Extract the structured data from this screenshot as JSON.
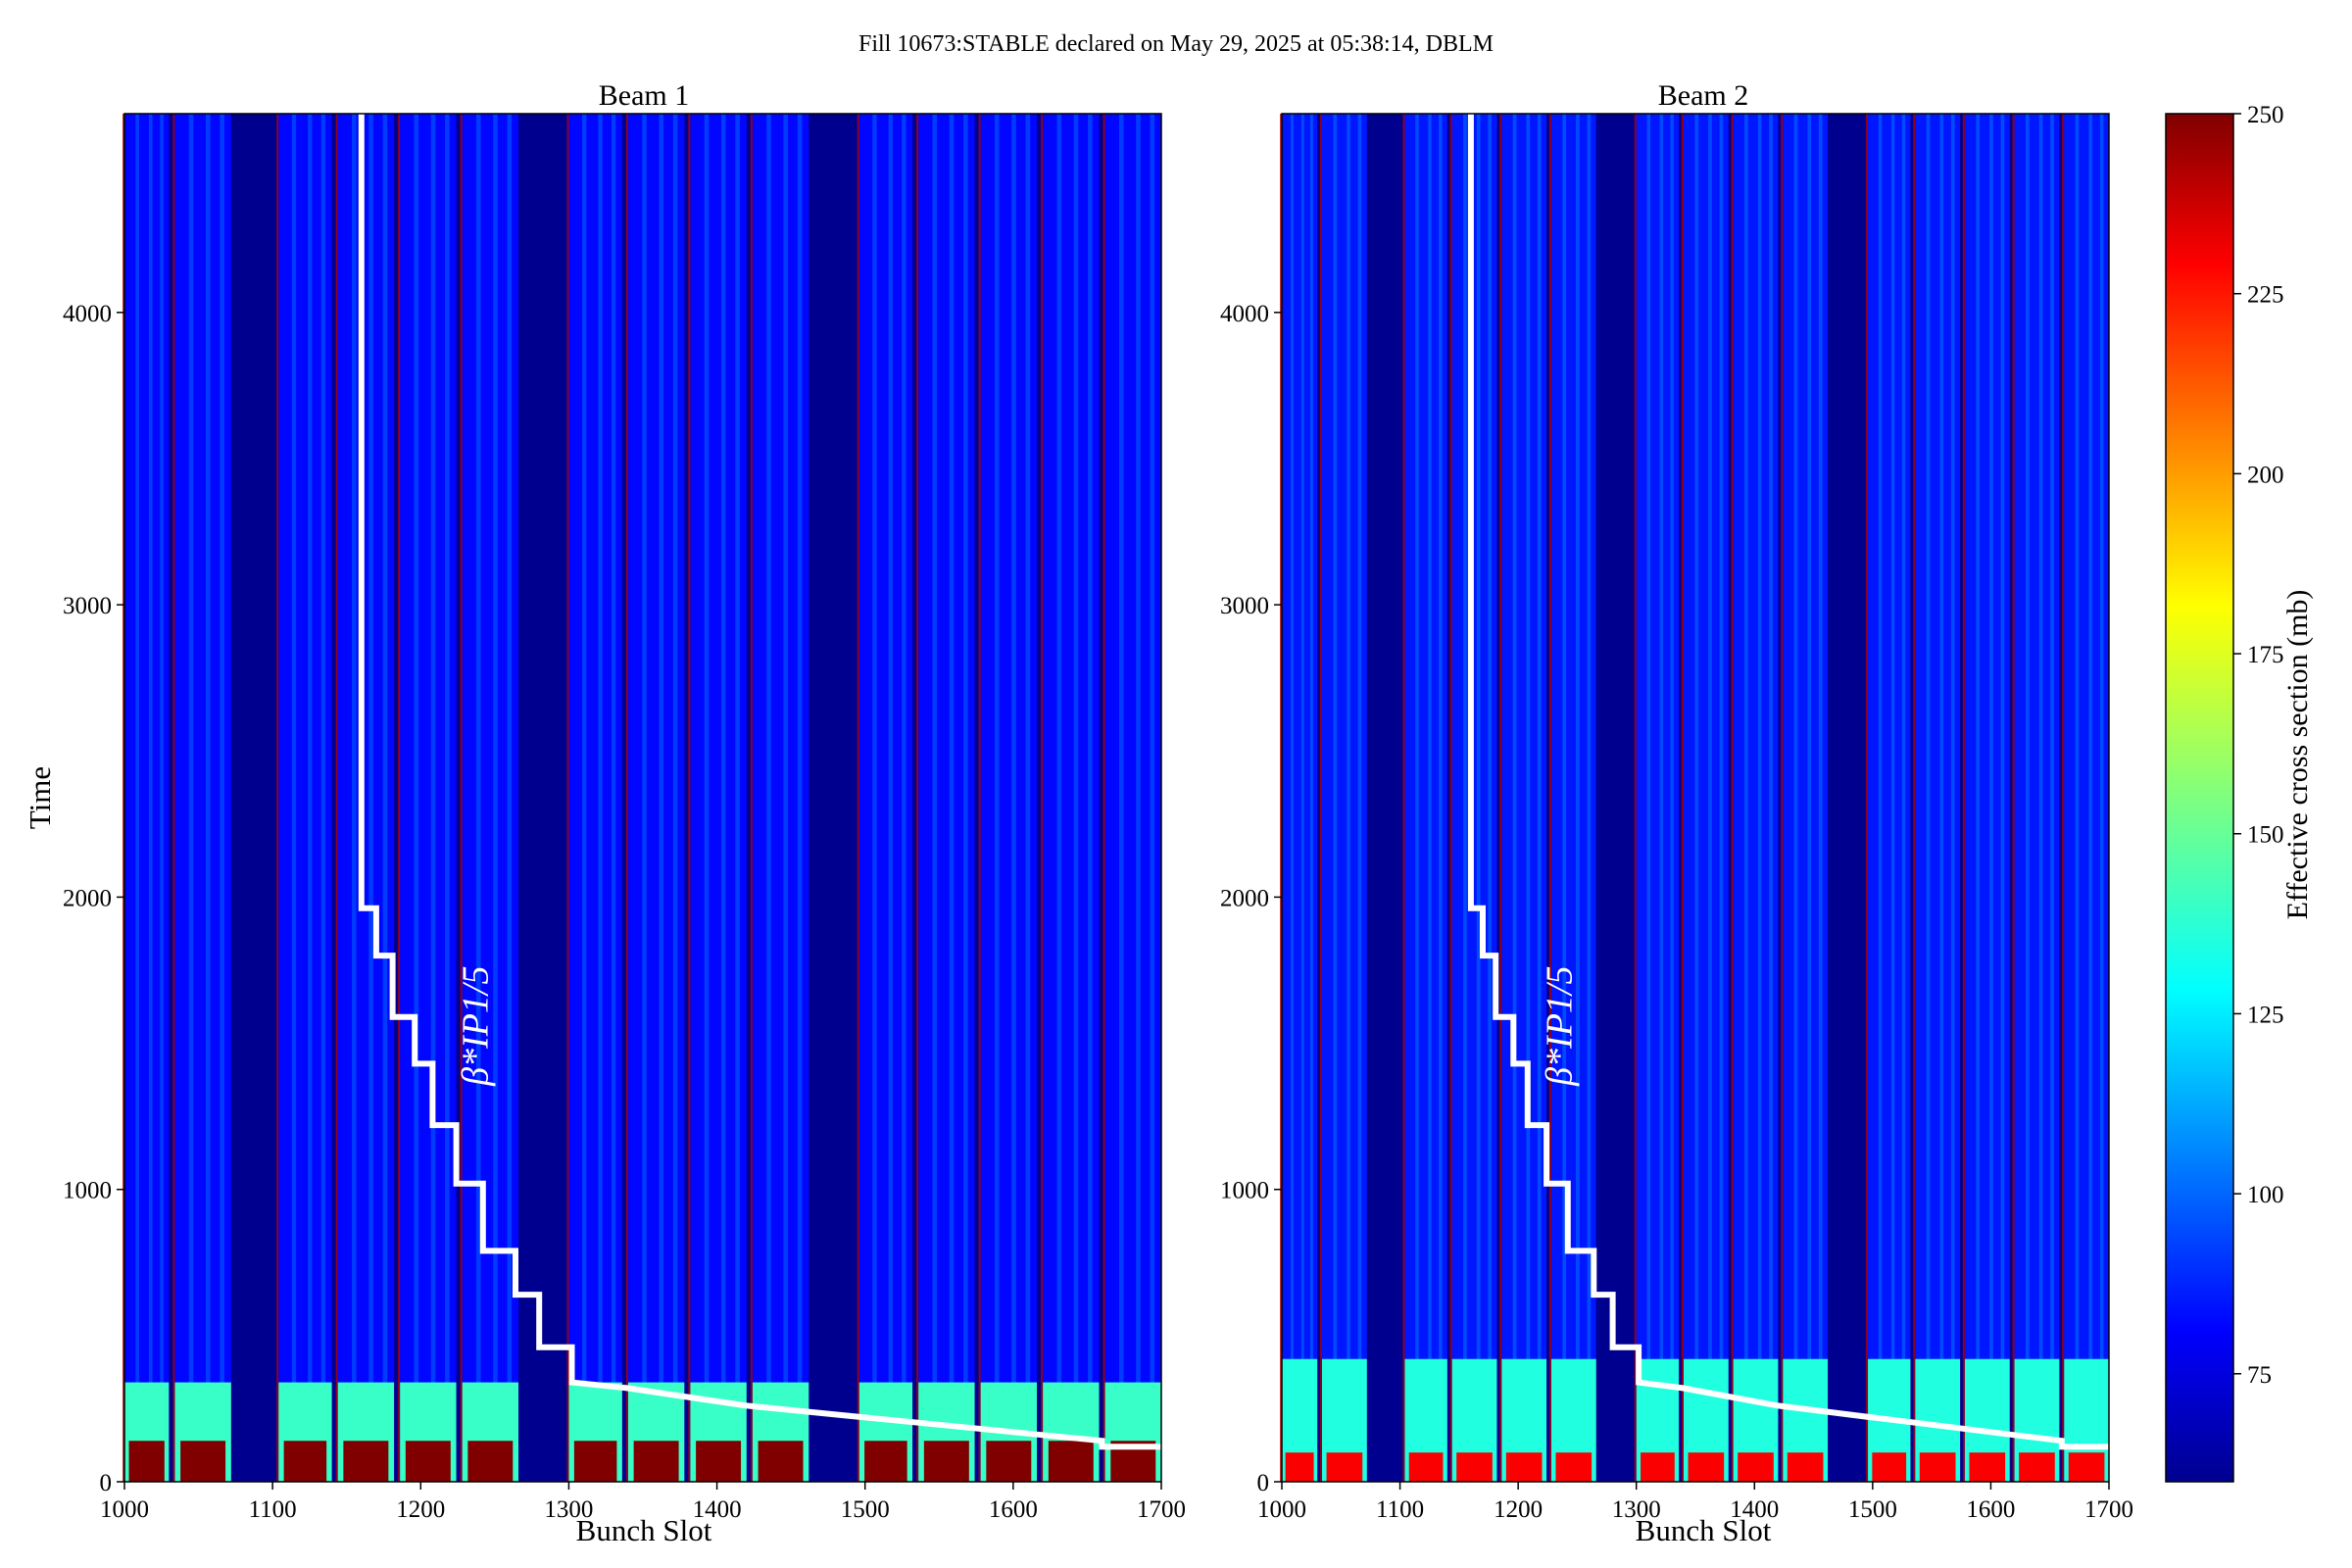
{
  "figure": {
    "suptitle": "Fill 10673:STABLE declared on May 29, 2025 at 05:38:14, DBLM"
  },
  "chart_data": [
    {
      "type": "heatmap",
      "title": "Beam 1",
      "xlabel": "Bunch Slot",
      "ylabel": "Time",
      "xlim": [
        1000,
        1700
      ],
      "ylim": [
        0,
        4680
      ],
      "xticks": [
        1000,
        1100,
        1200,
        1300,
        1400,
        1500,
        1600,
        1700
      ],
      "yticks": [
        0,
        1000,
        2000,
        3000,
        4000
      ],
      "colormap": "jet",
      "filled_trains": [
        [
          1000,
          1030
        ],
        [
          1034,
          1072
        ],
        [
          1104,
          1140
        ],
        [
          1144,
          1182
        ],
        [
          1186,
          1224
        ],
        [
          1228,
          1266
        ],
        [
          1300,
          1336
        ],
        [
          1340,
          1378
        ],
        [
          1382,
          1420
        ],
        [
          1424,
          1462
        ],
        [
          1496,
          1532
        ],
        [
          1536,
          1574
        ],
        [
          1578,
          1616
        ],
        [
          1620,
          1658
        ],
        [
          1662,
          1700
        ]
      ],
      "empty_color": "#00008f",
      "bulk_level_mb": 82,
      "low_time_band": {
        "time_range": [
          0,
          340
        ],
        "level_mb": 140
      },
      "high_time_band": {
        "time_range": [
          0,
          140
        ],
        "level_mb": 250
      },
      "annotation": "β*IP1/5",
      "beta_star_profile": {
        "x": [
          1160,
          1160,
          1170,
          1170,
          1181,
          1181,
          1196,
          1196,
          1208,
          1208,
          1224,
          1224,
          1242,
          1242,
          1264,
          1264,
          1280,
          1280,
          1302,
          1302,
          1340,
          1380,
          1420,
          1460,
          1500,
          1540,
          1580,
          1620,
          1660,
          1660,
          1700
        ],
        "y": [
          4680,
          1962,
          1962,
          1800,
          1800,
          1590,
          1590,
          1430,
          1430,
          1220,
          1220,
          1020,
          1020,
          790,
          790,
          640,
          640,
          460,
          460,
          340,
          320,
          290,
          260,
          240,
          220,
          200,
          180,
          160,
          140,
          120,
          120
        ]
      }
    },
    {
      "type": "heatmap",
      "title": "Beam 2",
      "xlabel": "Bunch Slot",
      "ylabel": "",
      "xlim": [
        1000,
        1700
      ],
      "ylim": [
        0,
        4680
      ],
      "xticks": [
        1000,
        1100,
        1200,
        1300,
        1400,
        1500,
        1600,
        1700
      ],
      "yticks": [
        0,
        1000,
        2000,
        3000,
        4000
      ],
      "colormap": "jet",
      "filled_trains": [
        [
          1000,
          1030
        ],
        [
          1034,
          1072
        ],
        [
          1104,
          1140
        ],
        [
          1144,
          1182
        ],
        [
          1186,
          1224
        ],
        [
          1228,
          1266
        ],
        [
          1300,
          1336
        ],
        [
          1340,
          1378
        ],
        [
          1382,
          1420
        ],
        [
          1424,
          1462
        ],
        [
          1496,
          1532
        ],
        [
          1536,
          1574
        ],
        [
          1578,
          1616
        ],
        [
          1620,
          1658
        ],
        [
          1662,
          1700
        ]
      ],
      "empty_color": "#00008f",
      "bulk_level_mb": 85,
      "low_time_band": {
        "time_range": [
          0,
          420
        ],
        "level_mb": 135
      },
      "high_time_band": {
        "time_range": [
          0,
          100
        ],
        "level_mb": 230
      },
      "annotation": "β*IP1/5",
      "beta_star_profile": {
        "x": [
          1160,
          1160,
          1170,
          1170,
          1181,
          1181,
          1196,
          1196,
          1208,
          1208,
          1224,
          1224,
          1242,
          1242,
          1264,
          1264,
          1280,
          1280,
          1302,
          1302,
          1340,
          1380,
          1420,
          1460,
          1500,
          1540,
          1580,
          1620,
          1660,
          1660,
          1700
        ],
        "y": [
          4680,
          1962,
          1962,
          1800,
          1800,
          1590,
          1590,
          1430,
          1430,
          1220,
          1220,
          1020,
          1020,
          790,
          790,
          640,
          640,
          460,
          460,
          340,
          320,
          290,
          260,
          240,
          220,
          200,
          180,
          160,
          140,
          120,
          120
        ]
      }
    }
  ],
  "colorbar": {
    "label": "Effective cross section (mb)",
    "range": [
      60,
      250
    ],
    "ticks": [
      75,
      100,
      125,
      150,
      175,
      200,
      225,
      250
    ]
  }
}
